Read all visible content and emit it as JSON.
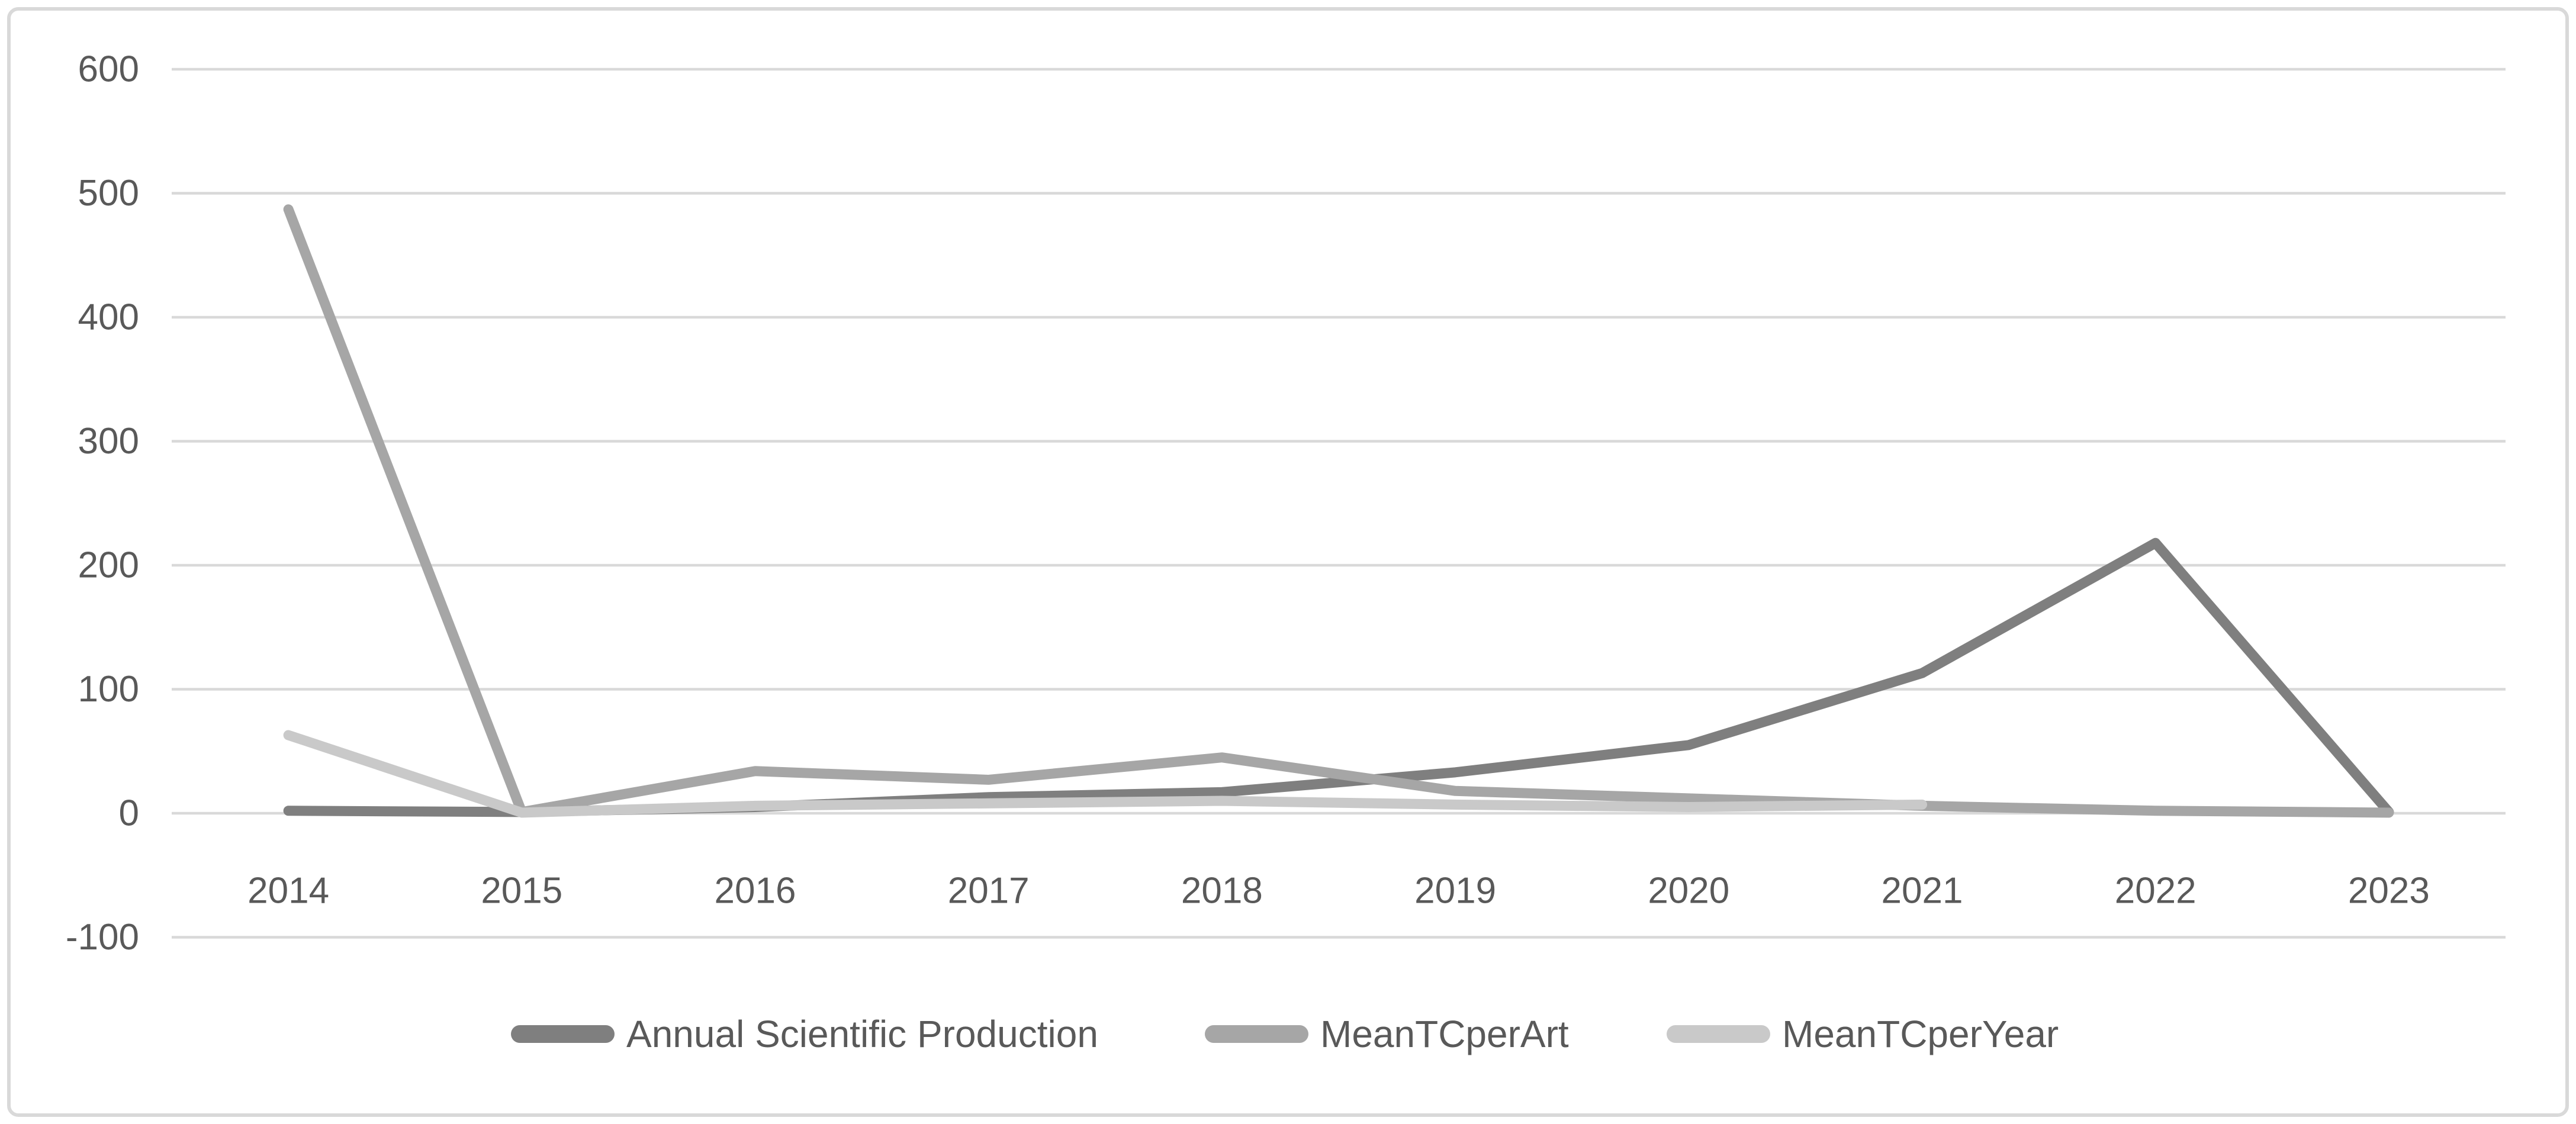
{
  "chart_data": {
    "type": "line",
    "title": "",
    "x_categories": [
      "2014",
      "2015",
      "2016",
      "2017",
      "2018",
      "2019",
      "2020",
      "2021",
      "2022",
      "2023"
    ],
    "y_axis": {
      "min": -100,
      "max": 600,
      "step": 100,
      "tick_labels": [
        "600",
        "500",
        "400",
        "300",
        "200",
        "100",
        "0",
        "-100"
      ]
    },
    "ylim": [
      -100,
      600
    ],
    "grid": true,
    "legend_position": "bottom-center",
    "series": [
      {
        "name": "Annual Scientific Production",
        "color": "#7f7f7f",
        "values": [
          2,
          1,
          5,
          13,
          17,
          33,
          55,
          113,
          218,
          1
        ]
      },
      {
        "name": "MeanTCperArt",
        "color": "#a6a6a6",
        "values": [
          487,
          1,
          34,
          27,
          45,
          18,
          12,
          6,
          2,
          0.5
        ]
      },
      {
        "name": "MeanTCperYear",
        "color": "#c9c9c9",
        "values": [
          63,
          0.5,
          6,
          8,
          10,
          7,
          5,
          7,
          null,
          null
        ]
      }
    ],
    "colors": {
      "gridline": "#d9d9d9",
      "border": "#d9d9d9",
      "axis_label": "#595959",
      "background": "#ffffff"
    }
  }
}
